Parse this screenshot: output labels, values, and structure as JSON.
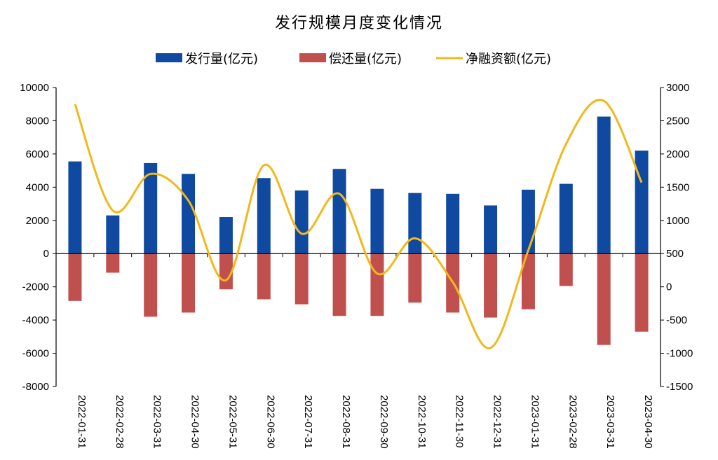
{
  "chart_data": {
    "type": "bar",
    "title": "发行规模月度变化情况",
    "categories": [
      "2022-01-31",
      "2022-02-28",
      "2022-03-31",
      "2022-04-30",
      "2022-05-31",
      "2022-06-30",
      "2022-07-31",
      "2022-08-31",
      "2022-09-30",
      "2022-10-31",
      "2022-11-30",
      "2022-12-31",
      "2023-01-31",
      "2023-02-28",
      "2023-03-31",
      "2023-04-30"
    ],
    "series": [
      {
        "name": "发行量(亿元)",
        "type": "bar",
        "axis": "left",
        "color": "#0f4aa0",
        "values": [
          5550,
          2300,
          5450,
          4800,
          2200,
          4550,
          3800,
          5100,
          3900,
          3650,
          3600,
          2900,
          3850,
          4200,
          8250,
          6200
        ]
      },
      {
        "name": "偿还量(亿元)",
        "type": "bar",
        "axis": "left",
        "color": "#c0504d",
        "values": [
          -2850,
          -1150,
          -3800,
          -3550,
          -2150,
          -2750,
          -3050,
          -3750,
          -3750,
          -2950,
          -3550,
          -3850,
          -3350,
          -1950,
          -5500,
          -4700
        ]
      },
      {
        "name": "净融资额(亿元)",
        "type": "line",
        "axis": "right",
        "color": "#f2b81b",
        "smooth": true,
        "values": [
          2750,
          1150,
          1700,
          1300,
          100,
          1830,
          800,
          1400,
          200,
          730,
          70,
          -920,
          550,
          2150,
          2800,
          1570
        ]
      }
    ],
    "y_left": {
      "min": -8000,
      "max": 10000,
      "step": 2000
    },
    "y_right": {
      "min": -1500,
      "max": 3000,
      "step": 500
    },
    "legend_position": "top-center",
    "grid": false
  }
}
